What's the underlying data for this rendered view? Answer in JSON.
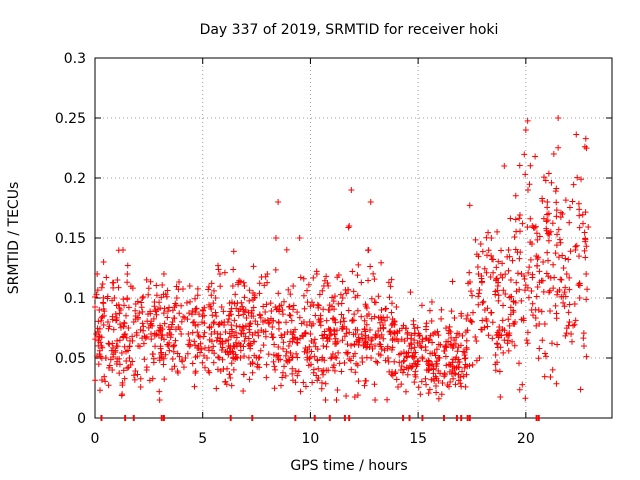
{
  "chart_data": {
    "type": "scatter",
    "title": "Day 337 of 2019, SRMTID for receiver hoki",
    "xlabel": "GPS time / hours",
    "ylabel": "SRMTID / TECUs",
    "xlim": [
      0,
      24
    ],
    "ylim": [
      0,
      0.3
    ],
    "xticks": [
      "0",
      "5",
      "10",
      "15",
      "20"
    ],
    "yticks": [
      "0",
      "0.05",
      "0.1",
      "0.15",
      "0.2",
      "0.25",
      "0.3"
    ],
    "grid": true,
    "marker": "plus",
    "color": "#ff0000",
    "description_of_series": "dense cloud of points; values mostly 0.03-0.11 from 0-17 h with a dip near 15-17 h, rising to 0.05-0.25 between 17.5 and 23 h; peaks near 0.25",
    "series": [
      {
        "points": [
          [
            0.05,
            0.07
          ],
          [
            0.1,
            0.12
          ],
          [
            0.2,
            0.09
          ],
          [
            0.3,
            0.06
          ],
          [
            0.4,
            0.13
          ],
          [
            0.5,
            0.05
          ],
          [
            0.6,
            0.08
          ],
          [
            0.8,
            0.04
          ],
          [
            0.9,
            0.1
          ],
          [
            1.0,
            0.06
          ],
          [
            1.2,
            0.09
          ],
          [
            1.3,
            0.14
          ],
          [
            1.4,
            0.07
          ],
          [
            1.5,
            0.12
          ],
          [
            1.6,
            0.05
          ],
          [
            1.8,
            0.08
          ],
          [
            2.0,
            0.06
          ],
          [
            2.2,
            0.1
          ],
          [
            2.4,
            0.04
          ],
          [
            2.6,
            0.07
          ],
          [
            2.8,
            0.09
          ],
          [
            3.0,
            0.05
          ],
          [
            3.2,
            0.12
          ],
          [
            3.4,
            0.06
          ],
          [
            3.6,
            0.08
          ],
          [
            3.8,
            0.1
          ],
          [
            4.0,
            0.07
          ],
          [
            4.2,
            0.05
          ],
          [
            4.4,
            0.11
          ],
          [
            4.6,
            0.08
          ],
          [
            4.8,
            0.06
          ],
          [
            5.0,
            0.09
          ],
          [
            5.2,
            0.05
          ],
          [
            5.4,
            0.07
          ],
          [
            5.6,
            0.1
          ],
          [
            5.8,
            0.12
          ],
          [
            6.0,
            0.08
          ],
          [
            6.2,
            0.06
          ],
          [
            6.4,
            0.11
          ],
          [
            6.6,
            0.05
          ],
          [
            6.8,
            0.07
          ],
          [
            7.0,
            0.09
          ],
          [
            7.2,
            0.06
          ],
          [
            7.4,
            0.1
          ],
          [
            7.6,
            0.05
          ],
          [
            7.8,
            0.08
          ],
          [
            8.0,
            0.12
          ],
          [
            8.2,
            0.07
          ],
          [
            8.4,
            0.15
          ],
          [
            8.5,
            0.18
          ],
          [
            8.7,
            0.09
          ],
          [
            9.0,
            0.06
          ],
          [
            9.2,
            0.11
          ],
          [
            9.5,
            0.15
          ],
          [
            9.7,
            0.08
          ],
          [
            10.0,
            0.07
          ],
          [
            10.3,
            0.12
          ],
          [
            10.6,
            0.06
          ],
          [
            10.9,
            0.09
          ],
          [
            11.2,
            0.05
          ],
          [
            11.5,
            0.1
          ],
          [
            11.8,
            0.16
          ],
          [
            11.9,
            0.19
          ],
          [
            12.1,
            0.07
          ],
          [
            12.4,
            0.05
          ],
          [
            12.7,
            0.14
          ],
          [
            12.8,
            0.18
          ],
          [
            13.0,
            0.06
          ],
          [
            13.3,
            0.09
          ],
          [
            13.6,
            0.05
          ],
          [
            13.9,
            0.08
          ],
          [
            14.2,
            0.04
          ],
          [
            14.5,
            0.07
          ],
          [
            14.8,
            0.05
          ],
          [
            15.1,
            0.06
          ],
          [
            15.4,
            0.04
          ],
          [
            15.7,
            0.07
          ],
          [
            16.0,
            0.05
          ],
          [
            16.3,
            0.06
          ],
          [
            16.6,
            0.04
          ],
          [
            16.9,
            0.07
          ],
          [
            17.2,
            0.05
          ],
          [
            17.5,
            0.08
          ],
          [
            17.8,
            0.12
          ],
          [
            18.1,
            0.09
          ],
          [
            18.4,
            0.15
          ],
          [
            18.7,
            0.11
          ],
          [
            19.0,
            0.21
          ],
          [
            19.2,
            0.14
          ],
          [
            19.5,
            0.08
          ],
          [
            19.8,
            0.12
          ],
          [
            20.0,
            0.24
          ],
          [
            20.1,
            0.19
          ],
          [
            20.3,
            0.16
          ],
          [
            20.6,
            0.09
          ],
          [
            20.8,
            0.13
          ],
          [
            21.0,
            0.18
          ],
          [
            21.3,
            0.22
          ],
          [
            21.5,
            0.25
          ],
          [
            21.7,
            0.17
          ],
          [
            21.9,
            0.12
          ],
          [
            22.1,
            0.07
          ],
          [
            22.3,
            0.14
          ],
          [
            22.5,
            0.1
          ],
          [
            22.7,
            0.06
          ],
          [
            22.8,
            0.12
          ]
        ]
      }
    ]
  }
}
